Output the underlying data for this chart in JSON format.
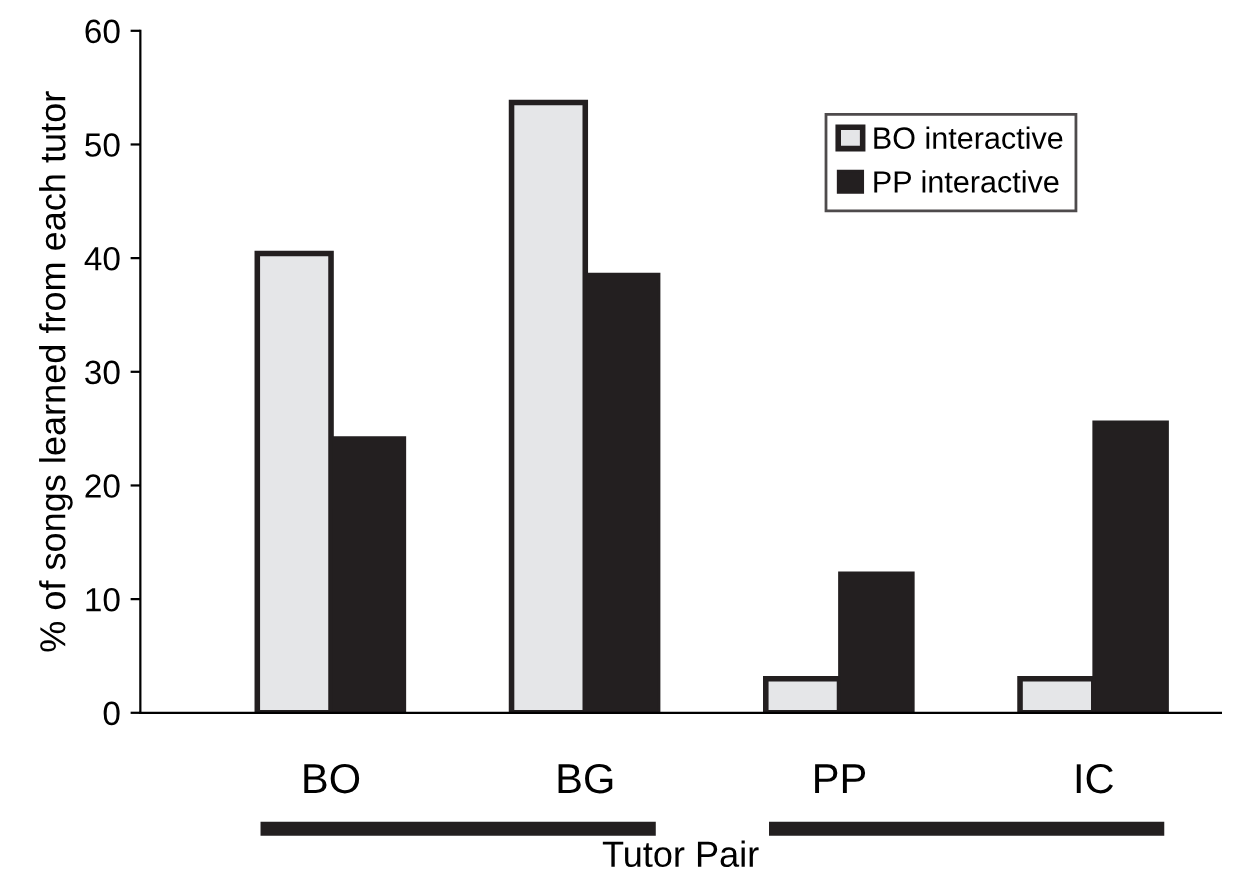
{
  "chart_data": {
    "type": "bar",
    "xlabel": "Tutor Pair",
    "ylabel": "% of songs learned from each tutor",
    "categories": [
      "BO",
      "BG",
      "PP",
      "IC"
    ],
    "series": [
      {
        "name": "BO interactive",
        "color": "#e5e6e8",
        "values": [
          40.4,
          53.7,
          3.0,
          3.0
        ]
      },
      {
        "name": "PP interactive",
        "color": "#231f20",
        "values": [
          24.2,
          38.6,
          12.3,
          25.6
        ]
      }
    ],
    "ylim": [
      0,
      60
    ],
    "yticks": [
      0,
      10,
      20,
      30,
      40,
      50,
      60
    ],
    "grid": false,
    "legend": "top right"
  }
}
